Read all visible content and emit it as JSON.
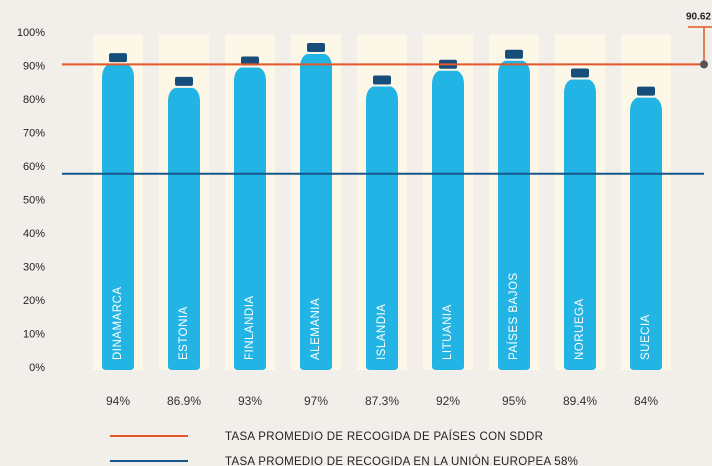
{
  "chart_data": {
    "type": "bar",
    "categories": [
      "DINAMARCA",
      "ESTONIA",
      "FINLANDIA",
      "ALEMANIA",
      "ISLANDIA",
      "LITUANIA",
      "PAÍSES BAJOS",
      "NORUEGA",
      "SUECIA"
    ],
    "values": [
      94,
      86.9,
      93,
      97,
      87.3,
      92,
      95,
      89.4,
      84
    ],
    "value_labels": [
      "94%",
      "86.9%",
      "93%",
      "97%",
      "87.3%",
      "92%",
      "95%",
      "89.4%",
      "84%"
    ],
    "color": "#22b4e4",
    "cap_color": "#164d7a",
    "ylim": [
      0,
      100
    ],
    "yticks": [
      {
        "value": 0,
        "label": "0%"
      },
      {
        "value": 10,
        "label": "10%"
      },
      {
        "value": 20,
        "label": "20%"
      },
      {
        "value": 30,
        "label": "30%"
      },
      {
        "value": 40,
        "label": "40%"
      },
      {
        "value": 50,
        "label": "50%"
      },
      {
        "value": 60,
        "label": "60%"
      },
      {
        "value": 70,
        "label": "70%"
      },
      {
        "value": 80,
        "label": "80%"
      },
      {
        "value": 90,
        "label": "90%"
      },
      {
        "value": 100,
        "label": "100%"
      }
    ],
    "reference_lines": [
      {
        "value": 90.62,
        "label": "90.62",
        "name": "TASA PROMEDIO DE RECOGIDA DE PAÍSES CON SDDR",
        "color": "#e2572b"
      },
      {
        "value": 58,
        "name": "TASA PROMEDIO DE RECOGIDA EN LA UNIÓN EUROPEA 58%",
        "color": "#17578c"
      }
    ]
  }
}
